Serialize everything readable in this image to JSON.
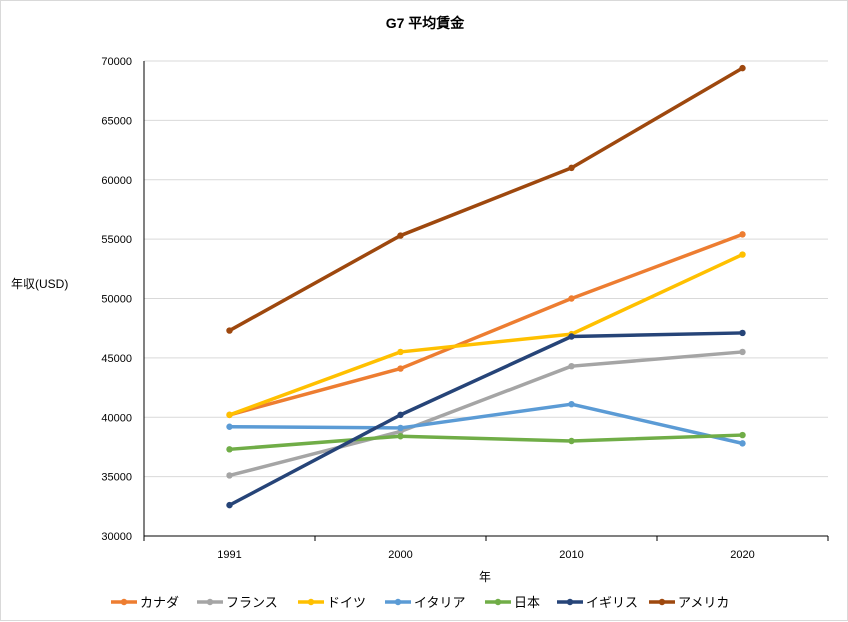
{
  "chart_data": {
    "type": "line",
    "title": "G7 平均賃金",
    "xlabel": "年",
    "ylabel": "年収(USD)",
    "categories": [
      "1991",
      "2000",
      "2010",
      "2020"
    ],
    "ylim": [
      30000,
      70000
    ],
    "yticks": [
      "30000",
      "35000",
      "40000",
      "45000",
      "50000",
      "55000",
      "60000",
      "65000",
      "70000"
    ],
    "grid": true,
    "legend_position": "bottom",
    "series": [
      {
        "name": "カナダ",
        "color": "#ed7d31",
        "values": [
          40200,
          44100,
          50000,
          55400
        ]
      },
      {
        "name": "フランス",
        "color": "#a5a5a5",
        "values": [
          35100,
          38800,
          44300,
          45500
        ]
      },
      {
        "name": "ドイツ",
        "color": "#ffc000",
        "values": [
          40200,
          45500,
          47000,
          53700
        ]
      },
      {
        "name": "イタリア",
        "color": "#5b9bd5",
        "values": [
          39200,
          39100,
          41100,
          37800
        ]
      },
      {
        "name": "日本",
        "color": "#70ad47",
        "values": [
          37300,
          38400,
          38000,
          38500
        ]
      },
      {
        "name": "イギリス",
        "color": "#264478",
        "values": [
          32600,
          40200,
          46800,
          47100
        ]
      },
      {
        "name": "アメリカ",
        "color": "#9e480e",
        "values": [
          47300,
          55300,
          61000,
          69400
        ]
      }
    ]
  }
}
